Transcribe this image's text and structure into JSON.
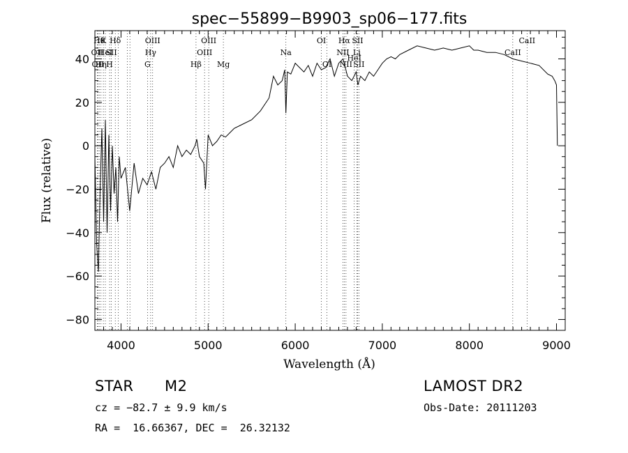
{
  "chart_data": {
    "type": "line",
    "title": "spec−55899−B9903_sp06−177.fits",
    "xlabel": "Wavelength (Å)",
    "ylabel": "Flux (relative)",
    "xlim": [
      3700,
      9100
    ],
    "ylim": [
      -85,
      53
    ],
    "xticks": [
      4000,
      5000,
      6000,
      7000,
      8000,
      9000
    ],
    "yticks": [
      -80,
      -60,
      -40,
      -20,
      0,
      20,
      40
    ],
    "xtick_labels": [
      "4000",
      "5000",
      "6000",
      "7000",
      "8000",
      "9000"
    ],
    "ytick_labels": [
      "−80",
      "−60",
      "−40",
      "−20",
      "0",
      "20",
      "40"
    ],
    "grid": false,
    "series": [
      {
        "x": [
          3700,
          3720,
          3740,
          3760,
          3780,
          3800,
          3820,
          3840,
          3860,
          3880,
          3900,
          3920,
          3940,
          3960,
          3980,
          4000,
          4050,
          4100,
          4150,
          4200,
          4250,
          4300,
          4350,
          4400,
          4450,
          4500,
          4550,
          4600,
          4650,
          4700,
          4750,
          4800,
          4850,
          4870,
          4900,
          4950,
          4970,
          5000,
          5050,
          5100,
          5150,
          5200,
          5250,
          5300,
          5400,
          5500,
          5600,
          5700,
          5750,
          5800,
          5850,
          5880,
          5893,
          5910,
          5950,
          6000,
          6050,
          6100,
          6150,
          6200,
          6250,
          6300,
          6350,
          6400,
          6450,
          6500,
          6550,
          6600,
          6650,
          6700,
          6720,
          6750,
          6800,
          6850,
          6900,
          6950,
          7000,
          7050,
          7100,
          7150,
          7200,
          7300,
          7400,
          7500,
          7600,
          7700,
          7800,
          7900,
          8000,
          8050,
          8100,
          8200,
          8300,
          8400,
          8500,
          8600,
          8700,
          8800,
          8900,
          8950,
          8980,
          9000,
          9010
        ],
        "y": [
          -5,
          -45,
          -58,
          -20,
          8,
          -35,
          12,
          -40,
          5,
          -30,
          0,
          -22,
          -10,
          -35,
          -5,
          -15,
          -10,
          -30,
          -8,
          -22,
          -15,
          -18,
          -12,
          -20,
          -10,
          -8,
          -5,
          -10,
          0,
          -5,
          -2,
          -4,
          0,
          3,
          -5,
          -8,
          -20,
          5,
          0,
          2,
          5,
          4,
          6,
          8,
          10,
          12,
          16,
          22,
          32,
          28,
          30,
          35,
          15,
          34,
          33,
          38,
          36,
          34,
          37,
          32,
          38,
          35,
          36,
          40,
          32,
          38,
          40,
          32,
          30,
          34,
          28,
          32,
          30,
          34,
          32,
          35,
          38,
          40,
          41,
          40,
          42,
          44,
          46,
          45,
          44,
          45,
          44,
          45,
          46,
          44,
          44,
          43,
          43,
          42,
          40,
          39,
          38,
          37,
          33,
          32,
          30,
          28,
          0
        ]
      }
    ],
    "lines": [
      {
        "x": 3727,
        "label": "OII",
        "row": 2
      },
      {
        "x": 3735,
        "label": "OII",
        "row": 3
      },
      {
        "x": 3750,
        "label": "Hθ",
        "row": 1
      },
      {
        "x": 3770,
        "label": "Hη",
        "row": 3
      },
      {
        "x": 3797,
        "label": "K",
        "row": 1
      },
      {
        "x": 3820,
        "label": "HeI",
        "row": 2
      },
      {
        "x": 3869,
        "label": "H",
        "row": 3
      },
      {
        "x": 3889,
        "label": "SII",
        "row": 2
      },
      {
        "x": 3934,
        "label": "Hδ",
        "row": 1
      },
      {
        "x": 3968,
        "label": "",
        "row": 0
      },
      {
        "x": 4072,
        "label": "",
        "row": 0
      },
      {
        "x": 4102,
        "label": "",
        "row": 0
      },
      {
        "x": 4304,
        "label": "G",
        "row": 3
      },
      {
        "x": 4340,
        "label": "Hγ",
        "row": 2
      },
      {
        "x": 4363,
        "label": "OIII",
        "row": 1
      },
      {
        "x": 4861,
        "label": "Hβ",
        "row": 3
      },
      {
        "x": 4959,
        "label": "OIII",
        "row": 2
      },
      {
        "x": 5007,
        "label": "OIII",
        "row": 1
      },
      {
        "x": 5175,
        "label": "Mg",
        "row": 3
      },
      {
        "x": 5893,
        "label": "Na",
        "row": 2
      },
      {
        "x": 6300,
        "label": "OI",
        "row": 1
      },
      {
        "x": 6364,
        "label": "OI",
        "row": 3
      },
      {
        "x": 6548,
        "label": "NII",
        "row": 2
      },
      {
        "x": 6563,
        "label": "Hα",
        "row": 1
      },
      {
        "x": 6583,
        "label": "NII",
        "row": 3
      },
      {
        "x": 6678,
        "label": "HeI",
        "row": 2.6
      },
      {
        "x": 6707,
        "label": "Li",
        "row": 2
      },
      {
        "x": 6716,
        "label": "SII",
        "row": 1
      },
      {
        "x": 6731,
        "label": "SII",
        "row": 3
      },
      {
        "x": 8498,
        "label": "CaII",
        "row": 2
      },
      {
        "x": 8662,
        "label": "CaII",
        "row": 1
      }
    ]
  },
  "info": {
    "object": "STAR",
    "subclass": "M2",
    "survey": "LAMOST DR2",
    "redshift": "cz = −82.7 ± 9.9 km/s",
    "obs_date": "Obs-Date: 20111203",
    "coords": "RA =  16.66367, DEC =  26.32132"
  }
}
